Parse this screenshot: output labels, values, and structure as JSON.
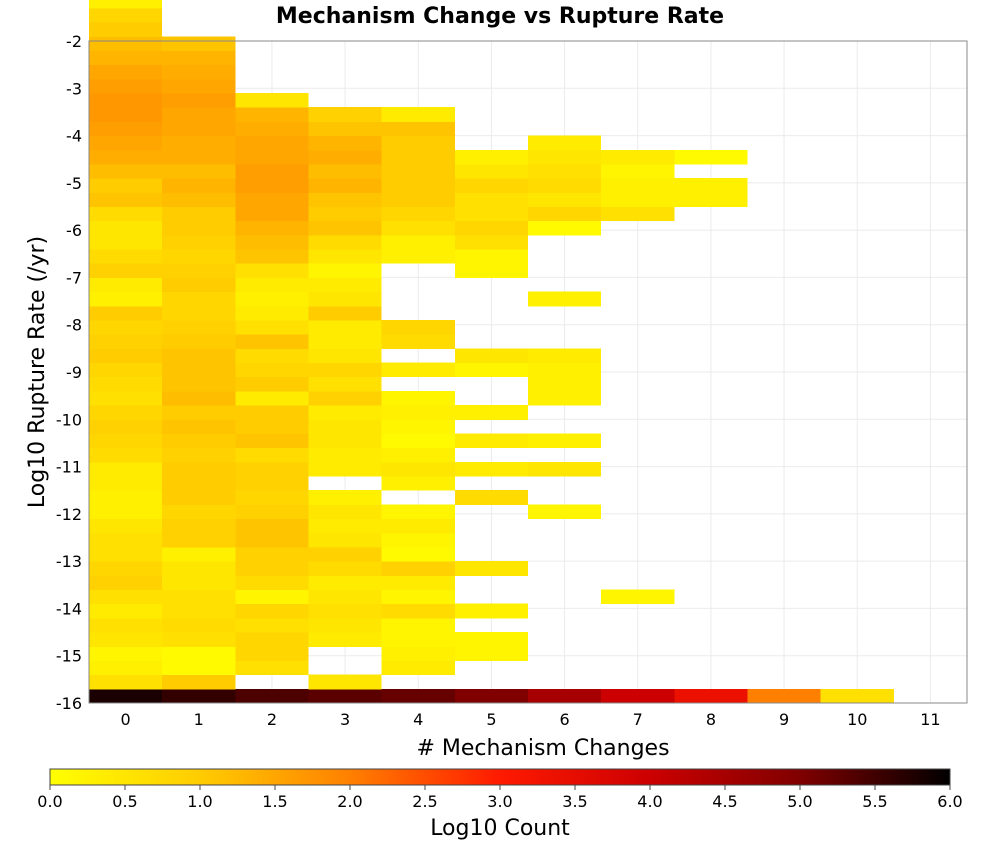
{
  "chart_data": {
    "type": "heatmap",
    "title": "Mechanism Change vs Rupture Rate",
    "xlabel": "# Mechanism Changes",
    "ylabel": "Log10 Rupture Rate (/yr)",
    "x_ticks": [
      "0",
      "1",
      "2",
      "3",
      "4",
      "5",
      "6",
      "7",
      "8",
      "9",
      "10",
      "11"
    ],
    "y_ticks": [
      "-2",
      "-3",
      "-4",
      "-5",
      "-6",
      "-7",
      "-8",
      "-9",
      "-10",
      "-11",
      "-12",
      "-13",
      "-14",
      "-15",
      "-16"
    ],
    "xlim": [
      -0.5,
      11.5
    ],
    "ylim": [
      -16,
      -2
    ],
    "bin_height": 0.3,
    "grid": true,
    "colorbar": {
      "label": "Log10 Count",
      "range": [
        0.0,
        6.0
      ],
      "ticks": [
        "0.0",
        "0.5",
        "1.0",
        "1.5",
        "2.0",
        "2.5",
        "3.0",
        "3.5",
        "4.0",
        "4.5",
        "5.0",
        "5.5",
        "6.0"
      ],
      "stops": [
        "#ffff00",
        "#ffcc00",
        "#ff8000",
        "#ff1a00",
        "#cc0000",
        "#800000",
        "#000000"
      ]
    },
    "columns": [
      {
        "x": 0,
        "y_start": -16.0,
        "values": [
          5.8,
          0.6,
          0.3,
          0.2,
          0.5,
          0.6,
          0.4,
          0.6,
          0.9,
          0.8,
          0.6,
          0.6,
          0.5,
          0.3,
          0.3,
          0.4,
          0.4,
          0.7,
          0.8,
          0.9,
          0.8,
          0.6,
          0.7,
          0.8,
          1.0,
          0.9,
          0.8,
          1.0,
          0.3,
          0.4,
          0.9,
          0.7,
          0.5,
          0.5,
          0.7,
          1.1,
          1.0,
          1.2,
          1.4,
          1.5,
          1.6,
          1.7,
          1.7,
          1.6,
          1.5,
          1.3,
          1.2,
          1.0,
          0.8,
          0.3
        ]
      },
      {
        "x": 1,
        "y_start": -16.0,
        "values": [
          5.6,
          1.0,
          0.1,
          0.1,
          0.6,
          0.7,
          0.6,
          0.6,
          0.5,
          0.5,
          0.3,
          0.9,
          0.9,
          0.8,
          1.0,
          1.0,
          1.0,
          0.9,
          1.0,
          1.1,
          1.0,
          1.2,
          1.1,
          1.1,
          1.1,
          1.0,
          0.9,
          0.8,
          0.8,
          1.0,
          0.9,
          0.8,
          0.9,
          1.0,
          1.0,
          1.2,
          1.3,
          1.2,
          1.4,
          1.4,
          1.5,
          1.5,
          1.6,
          1.5,
          1.4,
          1.3,
          1.1
        ]
      },
      {
        "x": 2,
        "y_start": -16.0,
        "values": [
          5.4,
          0.0,
          0.6,
          0.8,
          0.8,
          0.6,
          0.8,
          0.2,
          0.7,
          0.9,
          0.9,
          1.1,
          1.1,
          0.9,
          0.8,
          0.9,
          0.9,
          0.7,
          1.1,
          1.0,
          1.0,
          0.4,
          1.0,
          0.8,
          0.7,
          1.1,
          0.6,
          0.4,
          0.3,
          0.4,
          0.6,
          1.1,
          1.2,
          1.3,
          1.5,
          1.5,
          1.6,
          1.6,
          1.5,
          1.5,
          1.4,
          1.3,
          0.5
        ]
      },
      {
        "x": 3,
        "y_start": -16.0,
        "values": [
          5.3,
          0.5,
          0.0,
          0.0,
          0.4,
          0.5,
          0.6,
          0.5,
          0.4,
          0.7,
          0.9,
          0.5,
          0.4,
          0.5,
          0.3,
          0.0,
          0.4,
          0.4,
          0.5,
          0.5,
          0.4,
          0.9,
          0.6,
          0.8,
          0.5,
          0.4,
          0.4,
          1.0,
          0.5,
          0.4,
          0.2,
          0.5,
          0.7,
          1.1,
          1.0,
          1.1,
          1.3,
          1.2,
          1.4,
          1.3,
          1.1,
          0.9
        ]
      },
      {
        "x": 4,
        "y_start": -16.0,
        "values": [
          5.2,
          0.0,
          0.4,
          0.3,
          0.2,
          0.2,
          0.7,
          0.2,
          0.4,
          0.9,
          0.1,
          0.2,
          0.4,
          0.2,
          0.0,
          0.3,
          0.5,
          0.3,
          0.1,
          0.2,
          0.3,
          0.2,
          0.0,
          0.4,
          0.0,
          0.7,
          0.8,
          0.0,
          0.0,
          0.0,
          0.0,
          0.3,
          0.3,
          0.6,
          0.8,
          1.0,
          1.0,
          1.0,
          1.0,
          1.0,
          1.1,
          0.4
        ]
      },
      {
        "x": 5,
        "y_start": -16.0,
        "values": [
          5.0,
          0.0,
          0.0,
          0.2,
          0.2,
          0.0,
          0.3,
          0.0,
          0.0,
          0.5,
          0.0,
          0.0,
          0.0,
          0.0,
          0.7,
          0.0,
          0.4,
          0.0,
          0.4,
          0.0,
          0.3,
          0.0,
          0.0,
          0.2,
          0.5,
          0.0,
          0.0,
          0.0,
          0.0,
          0.0,
          0.2,
          0.2,
          0.6,
          0.8,
          0.6,
          0.6,
          0.8,
          0.5,
          0.3
        ]
      },
      {
        "x": 6,
        "y_start": -16.0,
        "values": [
          4.5,
          0.0,
          0.0,
          0.0,
          0.0,
          0.0,
          0.0,
          0.0,
          0.0,
          0.0,
          0.0,
          0.0,
          0.0,
          0.2,
          0.0,
          0.0,
          0.5,
          0.0,
          0.3,
          0.0,
          0.0,
          0.3,
          0.3,
          0.3,
          0.4,
          0.0,
          0.0,
          0.0,
          0.3,
          0.0,
          0.0,
          0.0,
          0.0,
          0.1,
          0.8,
          0.5,
          0.7,
          0.6,
          0.5,
          0.4
        ]
      },
      {
        "x": 7,
        "y_start": -16.0,
        "values": [
          4.0,
          0.0,
          0.0,
          0.0,
          0.0,
          0.0,
          0.0,
          0.2,
          0.0,
          0.0,
          0.0,
          0.0,
          0.0,
          0.0,
          0.0,
          0.0,
          0.0,
          0.0,
          0.0,
          0.0,
          0.0,
          0.0,
          0.0,
          0.0,
          0.0,
          0.0,
          0.0,
          0.0,
          0.0,
          0.0,
          0.0,
          0.0,
          0.0,
          0.0,
          0.6,
          0.3,
          0.3,
          0.2,
          0.4
        ]
      },
      {
        "x": 8,
        "y_start": -16.0,
        "values": [
          3.4,
          0.0,
          0.0,
          0.0,
          0.0,
          0.0,
          0.0,
          0.0,
          0.0,
          0.0,
          0.0,
          0.0,
          0.0,
          0.0,
          0.0,
          0.0,
          0.0,
          0.0,
          0.0,
          0.0,
          0.0,
          0.0,
          0.0,
          0.0,
          0.0,
          0.0,
          0.0,
          0.0,
          0.0,
          0.0,
          0.0,
          0.0,
          0.0,
          0.0,
          0.0,
          0.3,
          0.3,
          0.0,
          0.1
        ]
      },
      {
        "x": 9,
        "y_start": -16.0,
        "values": [
          2.0
        ]
      },
      {
        "x": 10,
        "y_start": -16.0,
        "values": [
          0.6
        ]
      }
    ]
  }
}
